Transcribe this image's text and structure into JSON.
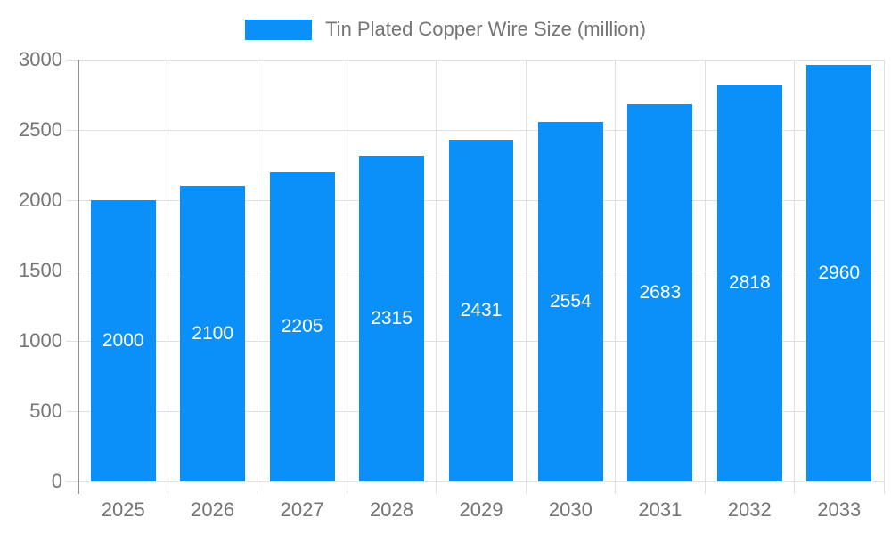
{
  "legend": {
    "label": "Tin Plated Copper Wire Size (million)"
  },
  "chart_data": {
    "type": "bar",
    "title": "Tin Plated Copper Wire Size (million)",
    "categories": [
      "2025",
      "2026",
      "2027",
      "2028",
      "2029",
      "2030",
      "2031",
      "2032",
      "2033"
    ],
    "values": [
      2000,
      2100,
      2205,
      2315,
      2431,
      2554,
      2683,
      2818,
      2960
    ],
    "xlabel": "",
    "ylabel": "",
    "ylim": [
      0,
      3000
    ],
    "yticks": [
      0,
      500,
      1000,
      1500,
      2000,
      2500,
      3000
    ],
    "grid": true,
    "legend_position": "top-center",
    "value_labels": "inside-middle"
  },
  "colors": {
    "bar": "#0a90f8",
    "grid": "#e0e0e0",
    "axis_line": "#919191",
    "axis_text": "#757575",
    "bar_label": "#ffffff",
    "background": "#ffffff"
  }
}
